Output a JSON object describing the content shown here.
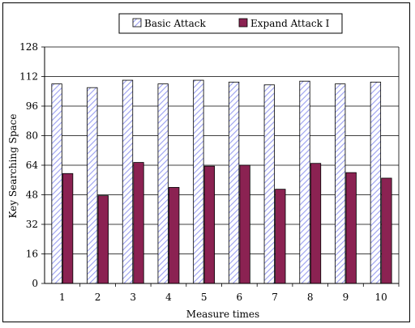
{
  "chart_data": {
    "type": "bar",
    "title": "",
    "xlabel": "Measure times",
    "ylabel": "Key Searching Space",
    "categories": [
      "1",
      "2",
      "3",
      "4",
      "5",
      "6",
      "7",
      "8",
      "9",
      "10"
    ],
    "ylim": [
      0,
      128
    ],
    "yticks": [
      "0",
      "16",
      "32",
      "48",
      "64",
      "80",
      "96",
      "112",
      "128"
    ],
    "grid": "horizontal",
    "legend_position": "top",
    "series": [
      {
        "name": "Basic Attack",
        "values": [
          108,
          106,
          110,
          108,
          110,
          109,
          107.5,
          109.5,
          108,
          109
        ],
        "fill": "hatched",
        "color": "#b8bcf0"
      },
      {
        "name": "Expand Attack I",
        "values": [
          59.5,
          47.5,
          65.5,
          52,
          63.5,
          64,
          51,
          65,
          60,
          57
        ],
        "fill": "solid",
        "color": "#8b2252"
      }
    ]
  }
}
